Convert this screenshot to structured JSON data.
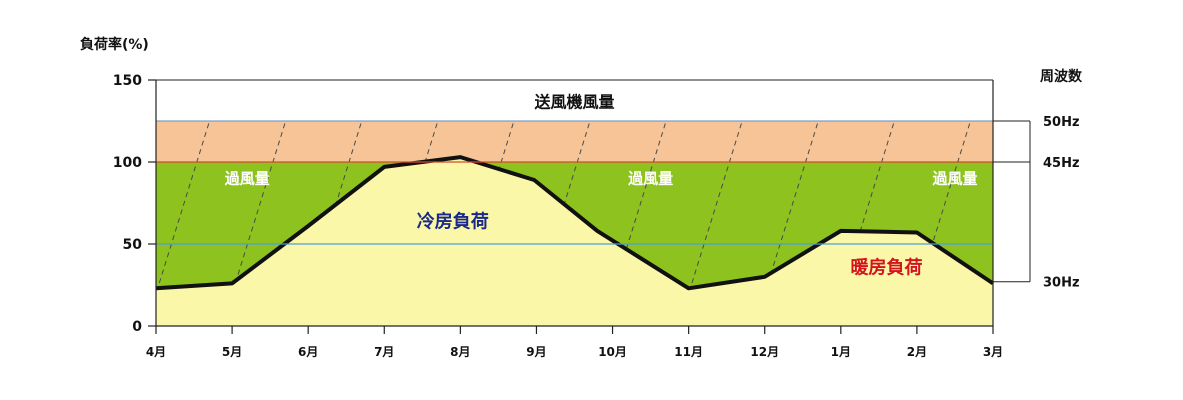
{
  "chart_data": {
    "type": "area",
    "ylabel": "負荷率(%)",
    "right_axis_title": "周波数",
    "ylim": [
      0,
      150
    ],
    "y_ticks": [
      {
        "value": 0,
        "label": "0"
      },
      {
        "value": 50,
        "label": "50"
      },
      {
        "value": 100,
        "label": "100"
      },
      {
        "value": 150,
        "label": "150"
      }
    ],
    "categories": [
      "4月",
      "5月",
      "6月",
      "7月",
      "8月",
      "9月",
      "10月",
      "11月",
      "12月",
      "1月",
      "2月",
      "3月"
    ],
    "series": [
      {
        "name": "",
        "points": [
          {
            "x": 0,
            "y": 23
          },
          {
            "x": 1,
            "y": 26
          },
          {
            "x": 2,
            "y": 61
          },
          {
            "x": 3,
            "y": 97
          },
          {
            "x": 4,
            "y": 103
          },
          {
            "x": 4.97,
            "y": 89
          },
          {
            "x": 5.8,
            "y": 58
          },
          {
            "x": 7,
            "y": 23
          },
          {
            "x": 8,
            "y": 30
          },
          {
            "x": 9,
            "y": 58
          },
          {
            "x": 10,
            "y": 57
          },
          {
            "x": 11,
            "y": 26
          }
        ]
      }
    ],
    "frequency_markers": [
      {
        "label": "50Hz",
        "value": 125
      },
      {
        "label": "45Hz",
        "value": 100
      },
      {
        "label": "30Hz",
        "value": 27
      }
    ],
    "reference_lines": [
      {
        "value": 125,
        "color": "#7aa0c8"
      },
      {
        "value": 100,
        "color": "#d94a2a"
      },
      {
        "value": 50,
        "color": "#4da0d8"
      }
    ],
    "bands": [
      {
        "label": "送風機風量",
        "from": 125,
        "to": 150,
        "color": "#ffffff"
      },
      {
        "label": "",
        "from": 100,
        "to": 125,
        "color": "#f6c496"
      },
      {
        "label": "",
        "from": 0,
        "to": 100,
        "color": "#8dc21f"
      }
    ],
    "annotations": [
      {
        "text": "過風量",
        "x": 1.2,
        "y": 87,
        "style": "excess"
      },
      {
        "text": "過風量",
        "x": 6.5,
        "y": 87,
        "style": "excess"
      },
      {
        "text": "過風量",
        "x": 10.5,
        "y": 87,
        "style": "excess"
      },
      {
        "text": "冷房負荷",
        "x": 3.9,
        "y": 60,
        "style": "cool"
      },
      {
        "text": "暖房負荷",
        "x": 9.6,
        "y": 32,
        "style": "heat"
      }
    ],
    "colors": {
      "load_fill": "#fbf7a9",
      "load_line": "#111111",
      "axis": "#222222",
      "dashed_hatch": "#4a4a4a"
    },
    "grid": false
  }
}
